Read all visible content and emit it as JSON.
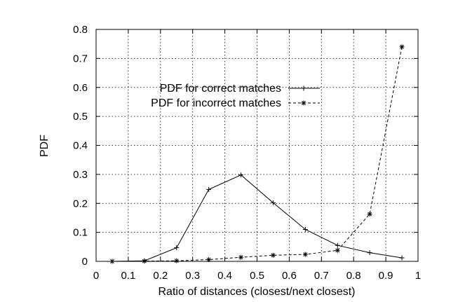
{
  "chart_data": {
    "type": "line",
    "xlabel": "Ratio of distances (closest/next closest)",
    "ylabel": "PDF",
    "xlim": [
      0,
      1
    ],
    "ylim": [
      0,
      0.8
    ],
    "grid": true,
    "legend_position": "upper-center",
    "x_ticks": [
      "0",
      "0.1",
      "0.2",
      "0.3",
      "0.4",
      "0.5",
      "0.6",
      "0.7",
      "0.8",
      "0.9",
      "1"
    ],
    "y_ticks": [
      "0",
      "0.1",
      "0.2",
      "0.3",
      "0.4",
      "0.5",
      "0.6",
      "0.7",
      "0.8"
    ],
    "series": [
      {
        "name": "PDF for correct matches",
        "line_style": "solid",
        "marker": "plus",
        "x": [
          0.05,
          0.15,
          0.25,
          0.35,
          0.45,
          0.55,
          0.65,
          0.75,
          0.85,
          0.95
        ],
        "y": [
          0.0,
          0.002,
          0.047,
          0.248,
          0.298,
          0.202,
          0.11,
          0.055,
          0.03,
          0.012
        ]
      },
      {
        "name": "PDF for incorrect matches",
        "line_style": "dashed",
        "marker": "star",
        "x": [
          0.05,
          0.15,
          0.25,
          0.35,
          0.45,
          0.55,
          0.65,
          0.75,
          0.85,
          0.95
        ],
        "y": [
          0.0,
          0.001,
          0.002,
          0.006,
          0.014,
          0.021,
          0.024,
          0.038,
          0.163,
          0.74
        ]
      }
    ]
  }
}
